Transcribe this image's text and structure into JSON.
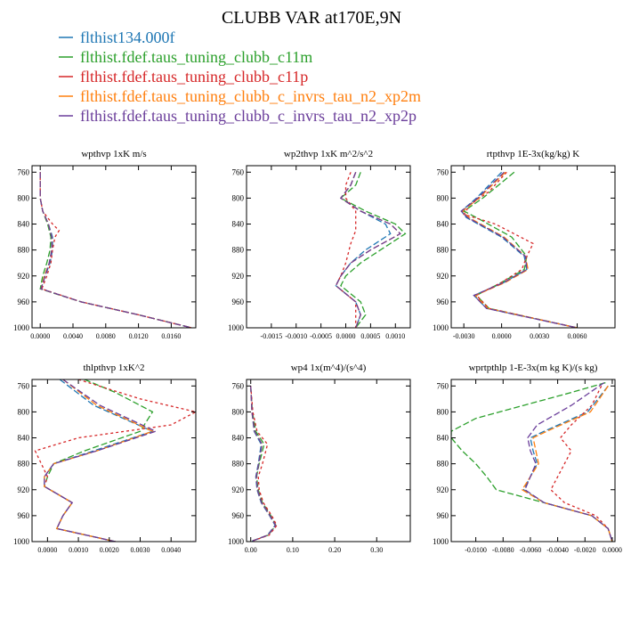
{
  "title": "CLUBB VAR at170E,9N",
  "legend": [
    {
      "label": "flthist134.000f",
      "color": "#1f77b4"
    },
    {
      "label": "flthist.fdef.taus_tuning_clubb_c11m",
      "color": "#2ca02c"
    },
    {
      "label": "flthist.fdef.taus_tuning_clubb_c11p",
      "color": "#d62728"
    },
    {
      "label": "flthist.fdef.taus_tuning_clubb_c_invrs_tau_n2_xp2m",
      "color": "#ff7f0e"
    },
    {
      "label": "flthist.fdef.taus_tuning_clubb_c_invrs_tau_n2_xp2p",
      "color": "#6a3d9a"
    }
  ],
  "chart_data": [
    {
      "type": "line",
      "title": "wpthvp   1xK m/s",
      "ylim": [
        1000,
        750
      ],
      "yticks": [
        760,
        800,
        840,
        880,
        920,
        960,
        1000
      ],
      "xlim": [
        -0.001,
        0.019
      ],
      "xticks": [
        0,
        0.004,
        0.008,
        0.012,
        0.016
      ],
      "xticklabels": [
        "0.0000",
        "0.0040",
        "0.0080",
        "0.0120",
        "0.0160"
      ],
      "series": [
        {
          "y": [
            760,
            800,
            820,
            840,
            860,
            880,
            900,
            920,
            940,
            960,
            980,
            1000
          ],
          "x": [
            0.0,
            0.0,
            0.0003,
            0.001,
            0.0015,
            0.0015,
            0.0012,
            0.0006,
            0.0001,
            0.005,
            0.012,
            0.0185
          ]
        },
        {
          "y": [
            760,
            800,
            820,
            840,
            860,
            880,
            900,
            920,
            940,
            960,
            980,
            1000
          ],
          "x": [
            0.0,
            0.0,
            0.0003,
            0.0009,
            0.0013,
            0.0012,
            0.0008,
            0.0003,
            0.0,
            0.005,
            0.012,
            0.0185
          ]
        },
        {
          "y": [
            760,
            800,
            820,
            840,
            850,
            860,
            880,
            900,
            920,
            940,
            960,
            980,
            1000
          ],
          "x": [
            0.0,
            0.0,
            0.0003,
            0.0015,
            0.0023,
            0.0018,
            0.0015,
            0.0013,
            0.0008,
            0.0002,
            0.005,
            0.012,
            0.0185
          ]
        },
        {
          "y": [
            760,
            800,
            820,
            840,
            860,
            880,
            900,
            920,
            940,
            960,
            980,
            1000
          ],
          "x": [
            0.0,
            0.0,
            0.0003,
            0.001,
            0.0014,
            0.0014,
            0.0011,
            0.0005,
            0.0001,
            0.005,
            0.012,
            0.0185
          ]
        },
        {
          "y": [
            760,
            800,
            820,
            840,
            860,
            880,
            900,
            920,
            940,
            960,
            980,
            1000
          ],
          "x": [
            0.0,
            0.0,
            0.0003,
            0.001,
            0.0014,
            0.0014,
            0.0011,
            0.0006,
            0.0001,
            0.005,
            0.012,
            0.0185
          ]
        }
      ]
    },
    {
      "type": "line",
      "title": "wp2thvp   1xK m^2/s^2",
      "ylim": [
        1000,
        750
      ],
      "yticks": [
        760,
        800,
        840,
        880,
        920,
        960,
        1000
      ],
      "xlim": [
        -0.002,
        0.0013
      ],
      "xticks": [
        -0.0015,
        -0.001,
        -0.0005,
        0,
        0.0005,
        0.001
      ],
      "xticklabels": [
        "-0.0015",
        "-0.0010",
        "-0.0005",
        "0.0000",
        "0.0005",
        "0.0010"
      ],
      "series": [
        {
          "y": [
            760,
            780,
            800,
            820,
            840,
            855,
            880,
            900,
            920,
            935,
            960,
            980,
            1000
          ],
          "x": [
            0.0002,
            0.0001,
            -0.0001,
            0.0003,
            0.0008,
            0.0009,
            0.0004,
            0.0001,
            -0.0001,
            -0.0002,
            0.0002,
            0.0003,
            0.0002
          ]
        },
        {
          "y": [
            760,
            780,
            800,
            820,
            840,
            855,
            880,
            900,
            920,
            935,
            960,
            980,
            1000
          ],
          "x": [
            0.0003,
            0.0002,
            -0.0001,
            0.0004,
            0.001,
            0.0012,
            0.0007,
            0.0003,
            0.0,
            -0.0001,
            0.0003,
            0.0004,
            0.0002
          ]
        },
        {
          "y": [
            760,
            780,
            800,
            820,
            850,
            870,
            900,
            920,
            935,
            960,
            980,
            1000
          ],
          "x": [
            0.0001,
            0.0,
            0.0,
            0.0002,
            0.0002,
            0.0001,
            0.0,
            -0.0001,
            -0.0002,
            0.0002,
            0.0002,
            0.0002
          ]
        },
        {
          "y": [
            760,
            780,
            800,
            820,
            840,
            855,
            880,
            900,
            920,
            935,
            960,
            980,
            1000
          ],
          "x": [
            0.0002,
            0.0001,
            -0.0001,
            0.0003,
            0.0009,
            0.0011,
            0.0005,
            0.0001,
            -0.0001,
            -0.0002,
            0.0002,
            0.0003,
            0.0002
          ]
        },
        {
          "y": [
            760,
            780,
            800,
            820,
            840,
            855,
            880,
            900,
            920,
            935,
            960,
            980,
            1000
          ],
          "x": [
            0.0002,
            0.0001,
            -0.0001,
            0.0003,
            0.0009,
            0.0011,
            0.0005,
            0.0001,
            -0.0001,
            -0.0002,
            0.0002,
            0.0003,
            0.0002
          ]
        }
      ]
    },
    {
      "type": "line",
      "title": "rtpthvp   1E-3x(kg/kg) K",
      "ylim": [
        1000,
        750
      ],
      "yticks": [
        760,
        800,
        840,
        880,
        920,
        960,
        1000
      ],
      "xlim": [
        -0.004,
        0.009
      ],
      "xticks": [
        -0.003,
        0,
        0.003,
        0.006
      ],
      "xticklabels": [
        "-0.0030",
        "0.0000",
        "0.0030",
        "0.0060"
      ],
      "series": [
        {
          "y": [
            760,
            800,
            820,
            830,
            860,
            890,
            910,
            930,
            950,
            970,
            1000
          ],
          "x": [
            0.0,
            -0.002,
            -0.0032,
            -0.0028,
            0.0,
            0.0018,
            0.002,
            0.0002,
            -0.0022,
            -0.0012,
            0.006
          ]
        },
        {
          "y": [
            760,
            800,
            820,
            830,
            860,
            890,
            910,
            930,
            950,
            970,
            1000
          ],
          "x": [
            0.001,
            -0.0015,
            -0.003,
            -0.002,
            0.0008,
            0.002,
            0.0018,
            0.0,
            -0.002,
            -0.001,
            0.006
          ]
        },
        {
          "y": [
            760,
            790,
            810,
            825,
            840,
            860,
            870,
            890,
            910,
            930,
            950,
            970,
            1000
          ],
          "x": [
            0.0004,
            -0.001,
            -0.0025,
            -0.003,
            -0.0005,
            0.0015,
            0.0025,
            0.002,
            0.0016,
            0.0,
            -0.002,
            -0.001,
            0.006
          ]
        },
        {
          "y": [
            760,
            800,
            820,
            830,
            860,
            890,
            910,
            930,
            950,
            970,
            1000
          ],
          "x": [
            0.0003,
            -0.0018,
            -0.0031,
            -0.0026,
            0.0002,
            0.0019,
            0.0021,
            0.0003,
            -0.0021,
            -0.0011,
            0.006
          ]
        },
        {
          "y": [
            760,
            800,
            820,
            830,
            860,
            890,
            910,
            930,
            950,
            970,
            1000
          ],
          "x": [
            0.0002,
            -0.0019,
            -0.0032,
            -0.0027,
            0.0001,
            0.0019,
            0.002,
            0.0002,
            -0.0022,
            -0.0012,
            0.006
          ]
        }
      ]
    },
    {
      "type": "line",
      "title": "thlpthvp   1xK^2",
      "ylim": [
        1000,
        750
      ],
      "yticks": [
        760,
        800,
        840,
        880,
        920,
        960,
        1000
      ],
      "xlim": [
        -0.0005,
        0.0048
      ],
      "xticks": [
        0,
        0.001,
        0.002,
        0.003,
        0.004
      ],
      "xticklabels": [
        "0.0000",
        "0.0010",
        "0.0020",
        "0.0030",
        "0.0040"
      ],
      "series": [
        {
          "y": [
            750,
            790,
            830,
            860,
            880,
            900,
            915,
            940,
            960,
            980,
            1000
          ],
          "x": [
            0.0004,
            0.0015,
            0.0034,
            0.0015,
            0.0002,
            -0.0001,
            -0.0001,
            0.0008,
            0.0005,
            0.0003,
            0.0022
          ]
        },
        {
          "y": [
            750,
            770,
            800,
            830,
            860,
            880,
            900,
            915,
            940,
            960,
            980,
            1000
          ],
          "x": [
            0.0012,
            0.0022,
            0.0034,
            0.003,
            0.0012,
            0.0002,
            0.0,
            -0.0001,
            0.0008,
            0.0005,
            0.0003,
            0.0022
          ]
        },
        {
          "y": [
            750,
            780,
            800,
            820,
            840,
            860,
            880,
            900,
            915,
            940,
            960,
            980,
            1000
          ],
          "x": [
            0.001,
            0.003,
            0.0048,
            0.004,
            0.001,
            -0.0004,
            -0.0002,
            0.0,
            -0.0001,
            0.0008,
            0.0005,
            0.0003,
            0.0022
          ]
        },
        {
          "y": [
            750,
            790,
            830,
            860,
            880,
            900,
            915,
            940,
            960,
            980,
            1000
          ],
          "x": [
            0.0005,
            0.0016,
            0.0034,
            0.0016,
            0.0002,
            -0.0001,
            -0.0001,
            0.0008,
            0.0005,
            0.0003,
            0.0022
          ]
        },
        {
          "y": [
            750,
            790,
            830,
            860,
            880,
            900,
            915,
            940,
            960,
            980,
            1000
          ],
          "x": [
            0.0005,
            0.0017,
            0.0035,
            0.0016,
            0.0002,
            -0.0001,
            -0.0001,
            0.0008,
            0.0005,
            0.0003,
            0.0022
          ]
        }
      ]
    },
    {
      "type": "line",
      "title": "wp4   1x(m^4)/(s^4)",
      "ylim": [
        1000,
        750
      ],
      "yticks": [
        760,
        800,
        840,
        880,
        920,
        960,
        1000
      ],
      "xlim": [
        -0.01,
        0.38
      ],
      "xticks": [
        0,
        0.1,
        0.2,
        0.3
      ],
      "xticklabels": [
        "0.00",
        "0.10",
        "0.20",
        "0.30"
      ],
      "series": [
        {
          "y": [
            760,
            800,
            830,
            850,
            880,
            900,
            920,
            940,
            960,
            975,
            990,
            1000
          ],
          "x": [
            0.0,
            0.003,
            0.008,
            0.025,
            0.018,
            0.012,
            0.015,
            0.025,
            0.045,
            0.058,
            0.04,
            0.0
          ]
        },
        {
          "y": [
            760,
            800,
            830,
            850,
            880,
            900,
            920,
            940,
            960,
            975,
            990,
            1000
          ],
          "x": [
            0.0,
            0.004,
            0.012,
            0.032,
            0.02,
            0.014,
            0.018,
            0.028,
            0.048,
            0.06,
            0.042,
            0.0
          ]
        },
        {
          "y": [
            760,
            800,
            830,
            850,
            880,
            900,
            920,
            940,
            960,
            975,
            990,
            1000
          ],
          "x": [
            0.0,
            0.005,
            0.015,
            0.04,
            0.028,
            0.018,
            0.02,
            0.03,
            0.05,
            0.062,
            0.044,
            0.0
          ]
        },
        {
          "y": [
            760,
            800,
            830,
            850,
            880,
            900,
            920,
            940,
            960,
            975,
            990,
            1000
          ],
          "x": [
            0.0,
            0.003,
            0.009,
            0.027,
            0.019,
            0.013,
            0.016,
            0.026,
            0.046,
            0.059,
            0.041,
            0.0
          ]
        },
        {
          "y": [
            760,
            800,
            830,
            850,
            880,
            900,
            920,
            940,
            960,
            975,
            990,
            1000
          ],
          "x": [
            0.0,
            0.003,
            0.009,
            0.027,
            0.019,
            0.013,
            0.016,
            0.026,
            0.046,
            0.059,
            0.041,
            0.0
          ]
        }
      ]
    },
    {
      "type": "line",
      "title": "wprtpthlp   1-E-3x(m kg K)/(s kg)",
      "ylim": [
        1000,
        750
      ],
      "yticks": [
        760,
        800,
        840,
        880,
        920,
        960,
        1000
      ],
      "xlim": [
        -0.0118,
        0.0002
      ],
      "xticks": [
        -0.01,
        -0.008,
        -0.006,
        -0.004,
        -0.002,
        0
      ],
      "xticklabels": [
        "-0.0100",
        "-0.0080",
        "-0.0060",
        "-0.0040",
        "-0.0020",
        "0.0000"
      ],
      "series": [
        {
          "y": [
            760,
            800,
            830,
            840,
            860,
            880,
            900,
            920,
            940,
            960,
            980,
            1000
          ],
          "x": [
            -0.0003,
            -0.0018,
            -0.005,
            -0.006,
            -0.0058,
            -0.0055,
            -0.006,
            -0.0065,
            -0.005,
            -0.0015,
            -0.0003,
            0.0
          ]
        },
        {
          "y": [
            755,
            770,
            790,
            810,
            830,
            840,
            860,
            880,
            900,
            920,
            940,
            960,
            980,
            1000
          ],
          "x": [
            -0.0005,
            -0.003,
            -0.0065,
            -0.01,
            -0.0118,
            -0.0118,
            -0.011,
            -0.01,
            -0.0092,
            -0.0085,
            -0.005,
            -0.0015,
            -0.0003,
            0.0
          ]
        },
        {
          "y": [
            760,
            790,
            820,
            840,
            860,
            880,
            900,
            920,
            940,
            960,
            980,
            1000
          ],
          "x": [
            -0.0008,
            -0.0015,
            -0.003,
            -0.0038,
            -0.003,
            -0.0035,
            -0.004,
            -0.0045,
            -0.0035,
            -0.0012,
            -0.0003,
            0.0
          ]
        },
        {
          "y": [
            760,
            800,
            830,
            840,
            860,
            880,
            900,
            920,
            940,
            960,
            980,
            1000
          ],
          "x": [
            -0.0003,
            -0.0016,
            -0.0048,
            -0.0058,
            -0.0056,
            -0.0054,
            -0.006,
            -0.0066,
            -0.005,
            -0.0015,
            -0.0003,
            0.0
          ]
        },
        {
          "y": [
            755,
            790,
            820,
            840,
            860,
            880,
            900,
            920,
            940,
            960,
            980,
            1000
          ],
          "x": [
            -0.0006,
            -0.003,
            -0.0055,
            -0.0062,
            -0.006,
            -0.0056,
            -0.006,
            -0.0064,
            -0.005,
            -0.0015,
            -0.0003,
            0.0
          ]
        }
      ]
    }
  ]
}
